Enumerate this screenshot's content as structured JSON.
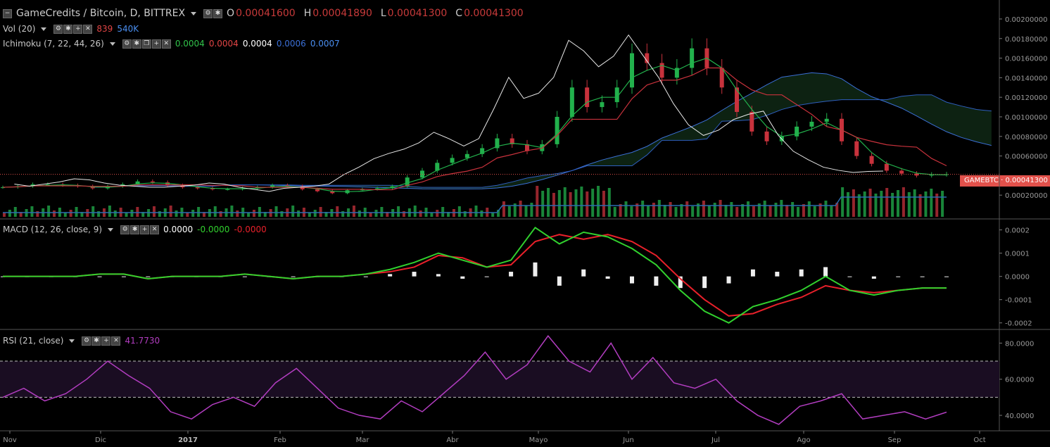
{
  "header": {
    "symbol": "GameCredits / Bitcoin, D, BITTREX",
    "open_label": "O",
    "open": "0.00041600",
    "high_label": "H",
    "high": "0.00041890",
    "low_label": "L",
    "low": "0.00041300",
    "close_label": "C",
    "close": "0.00041300"
  },
  "volume_legend": {
    "name": "Vol (20)",
    "v1": "839",
    "v2": "540K"
  },
  "ichimoku_legend": {
    "name": "Ichimoku (7, 22, 44, 26)",
    "v1": "0.0004",
    "v2": "0.0004",
    "v3": "0.0004",
    "v4": "0.0006",
    "v5": "0.0007"
  },
  "macd_legend": {
    "name": "MACD (12, 26, close, 9)",
    "v1": "0.0000",
    "v2": "-0.0000",
    "v3": "-0.0000"
  },
  "rsi_legend": {
    "name": "RSI (21, close)",
    "v1": "41.7730"
  },
  "price_tag": "GAMEBTC · 0.00041300",
  "colors": {
    "up": "#22b14c",
    "down": "#c8323c",
    "macd": "#31d12e",
    "signal": "#e8202a",
    "rsi": "#b23dc0",
    "cloud_up": "#0d2a14",
    "cloud_down": "#2a0b0d",
    "lead_a": "#3b6fd6",
    "lead_b": "#3b6fd6"
  },
  "chart_data": [
    {
      "type": "candlestick",
      "title": "GameCredits / Bitcoin, D, BITTREX",
      "x_ticks": [
        "Nov",
        "Dic",
        "2017",
        "Feb",
        "Mar",
        "Abr",
        "Mayo",
        "Jun",
        "Jul",
        "Ago",
        "Sep",
        "Oct"
      ],
      "y_ticks": [
        "0.00200000",
        "0.00180000",
        "0.00160000",
        "0.00140000",
        "0.00120000",
        "0.00100000",
        "0.00080000",
        "0.00060000",
        "0.00020000"
      ],
      "ylim": [
        0.0,
        0.00205
      ],
      "last_price": 0.000413,
      "close_series": [
        0.00028,
        0.00029,
        0.00031,
        0.00031,
        0.0003,
        0.00029,
        0.00027,
        0.00029,
        0.00031,
        0.00034,
        0.00033,
        0.0003,
        0.00028,
        0.00027,
        0.00026,
        0.00026,
        0.00027,
        0.00028,
        0.0003,
        0.00029,
        0.00026,
        0.00024,
        0.00022,
        0.00025,
        0.00026,
        0.00027,
        0.00029,
        0.00038,
        0.00045,
        0.00053,
        0.00058,
        0.00062,
        0.00068,
        0.00078,
        0.00072,
        0.00065,
        0.00072,
        0.001,
        0.0013,
        0.0011,
        0.00115,
        0.0013,
        0.00165,
        0.00155,
        0.0014,
        0.0015,
        0.0017,
        0.0015,
        0.0013,
        0.00105,
        0.00085,
        0.00075,
        0.0008,
        0.0009,
        0.00095,
        0.00098,
        0.00075,
        0.0006,
        0.00052,
        0.00045,
        0.00042,
        0.0004,
        0.00041,
        0.000413
      ]
    },
    {
      "type": "bar",
      "title": "Vol (20)",
      "description_values": "volume histogram, green up / red down"
    },
    {
      "type": "line",
      "title": "MACD (12, 26, close, 9)",
      "y_ticks": [
        "0.0002",
        "0.0001",
        "0.0000",
        "-0.0001",
        "-0.0002"
      ],
      "ylim": [
        -0.00021,
        0.00022
      ],
      "series": [
        {
          "name": "MACD",
          "values": [
            0.0,
            0.0,
            0.0,
            0.0,
            1e-05,
            1e-05,
            -1e-05,
            0.0,
            0.0,
            0.0,
            1e-05,
            0.0,
            -1e-05,
            0.0,
            0.0,
            1e-05,
            3e-05,
            6e-05,
            0.0001,
            7e-05,
            4e-05,
            7e-05,
            0.00021,
            0.00014,
            0.00019,
            0.00017,
            0.00012,
            5e-05,
            -6e-05,
            -0.00015,
            -0.0002,
            -0.00013,
            -0.0001,
            -6e-05,
            0.0,
            -6e-05,
            -8e-05,
            -6e-05,
            -5e-05,
            -5e-05
          ]
        },
        {
          "name": "Signal",
          "values": [
            0.0,
            0.0,
            0.0,
            0.0,
            1e-05,
            1e-05,
            -1e-05,
            0.0,
            0.0,
            0.0,
            1e-05,
            0.0,
            -1e-05,
            0.0,
            0.0,
            1e-05,
            2e-05,
            4e-05,
            9e-05,
            8e-05,
            4e-05,
            5e-05,
            0.00015,
            0.00018,
            0.00016,
            0.00018,
            0.00015,
            9e-05,
            -1e-05,
            -0.0001,
            -0.00017,
            -0.00016,
            -0.00012,
            -9e-05,
            -4e-05,
            -6e-05,
            -7e-05,
            -6e-05,
            -5e-05,
            -5e-05
          ]
        }
      ]
    },
    {
      "type": "line",
      "title": "RSI (21, close)",
      "y_ticks": [
        "80.0000",
        "60.0000",
        "40.0000"
      ],
      "ylim": [
        33,
        86
      ],
      "bands": [
        50,
        70
      ],
      "series": [
        {
          "name": "RSI",
          "values": [
            50,
            55,
            48,
            52,
            60,
            70,
            62,
            55,
            42,
            38,
            46,
            50,
            45,
            58,
            66,
            55,
            44,
            40,
            38,
            48,
            42,
            52,
            62,
            75,
            60,
            68,
            84,
            70,
            64,
            80,
            60,
            72,
            58,
            55,
            60,
            48,
            40,
            35,
            45,
            48,
            52,
            38,
            40,
            42,
            38,
            41.77
          ]
        }
      ]
    }
  ]
}
